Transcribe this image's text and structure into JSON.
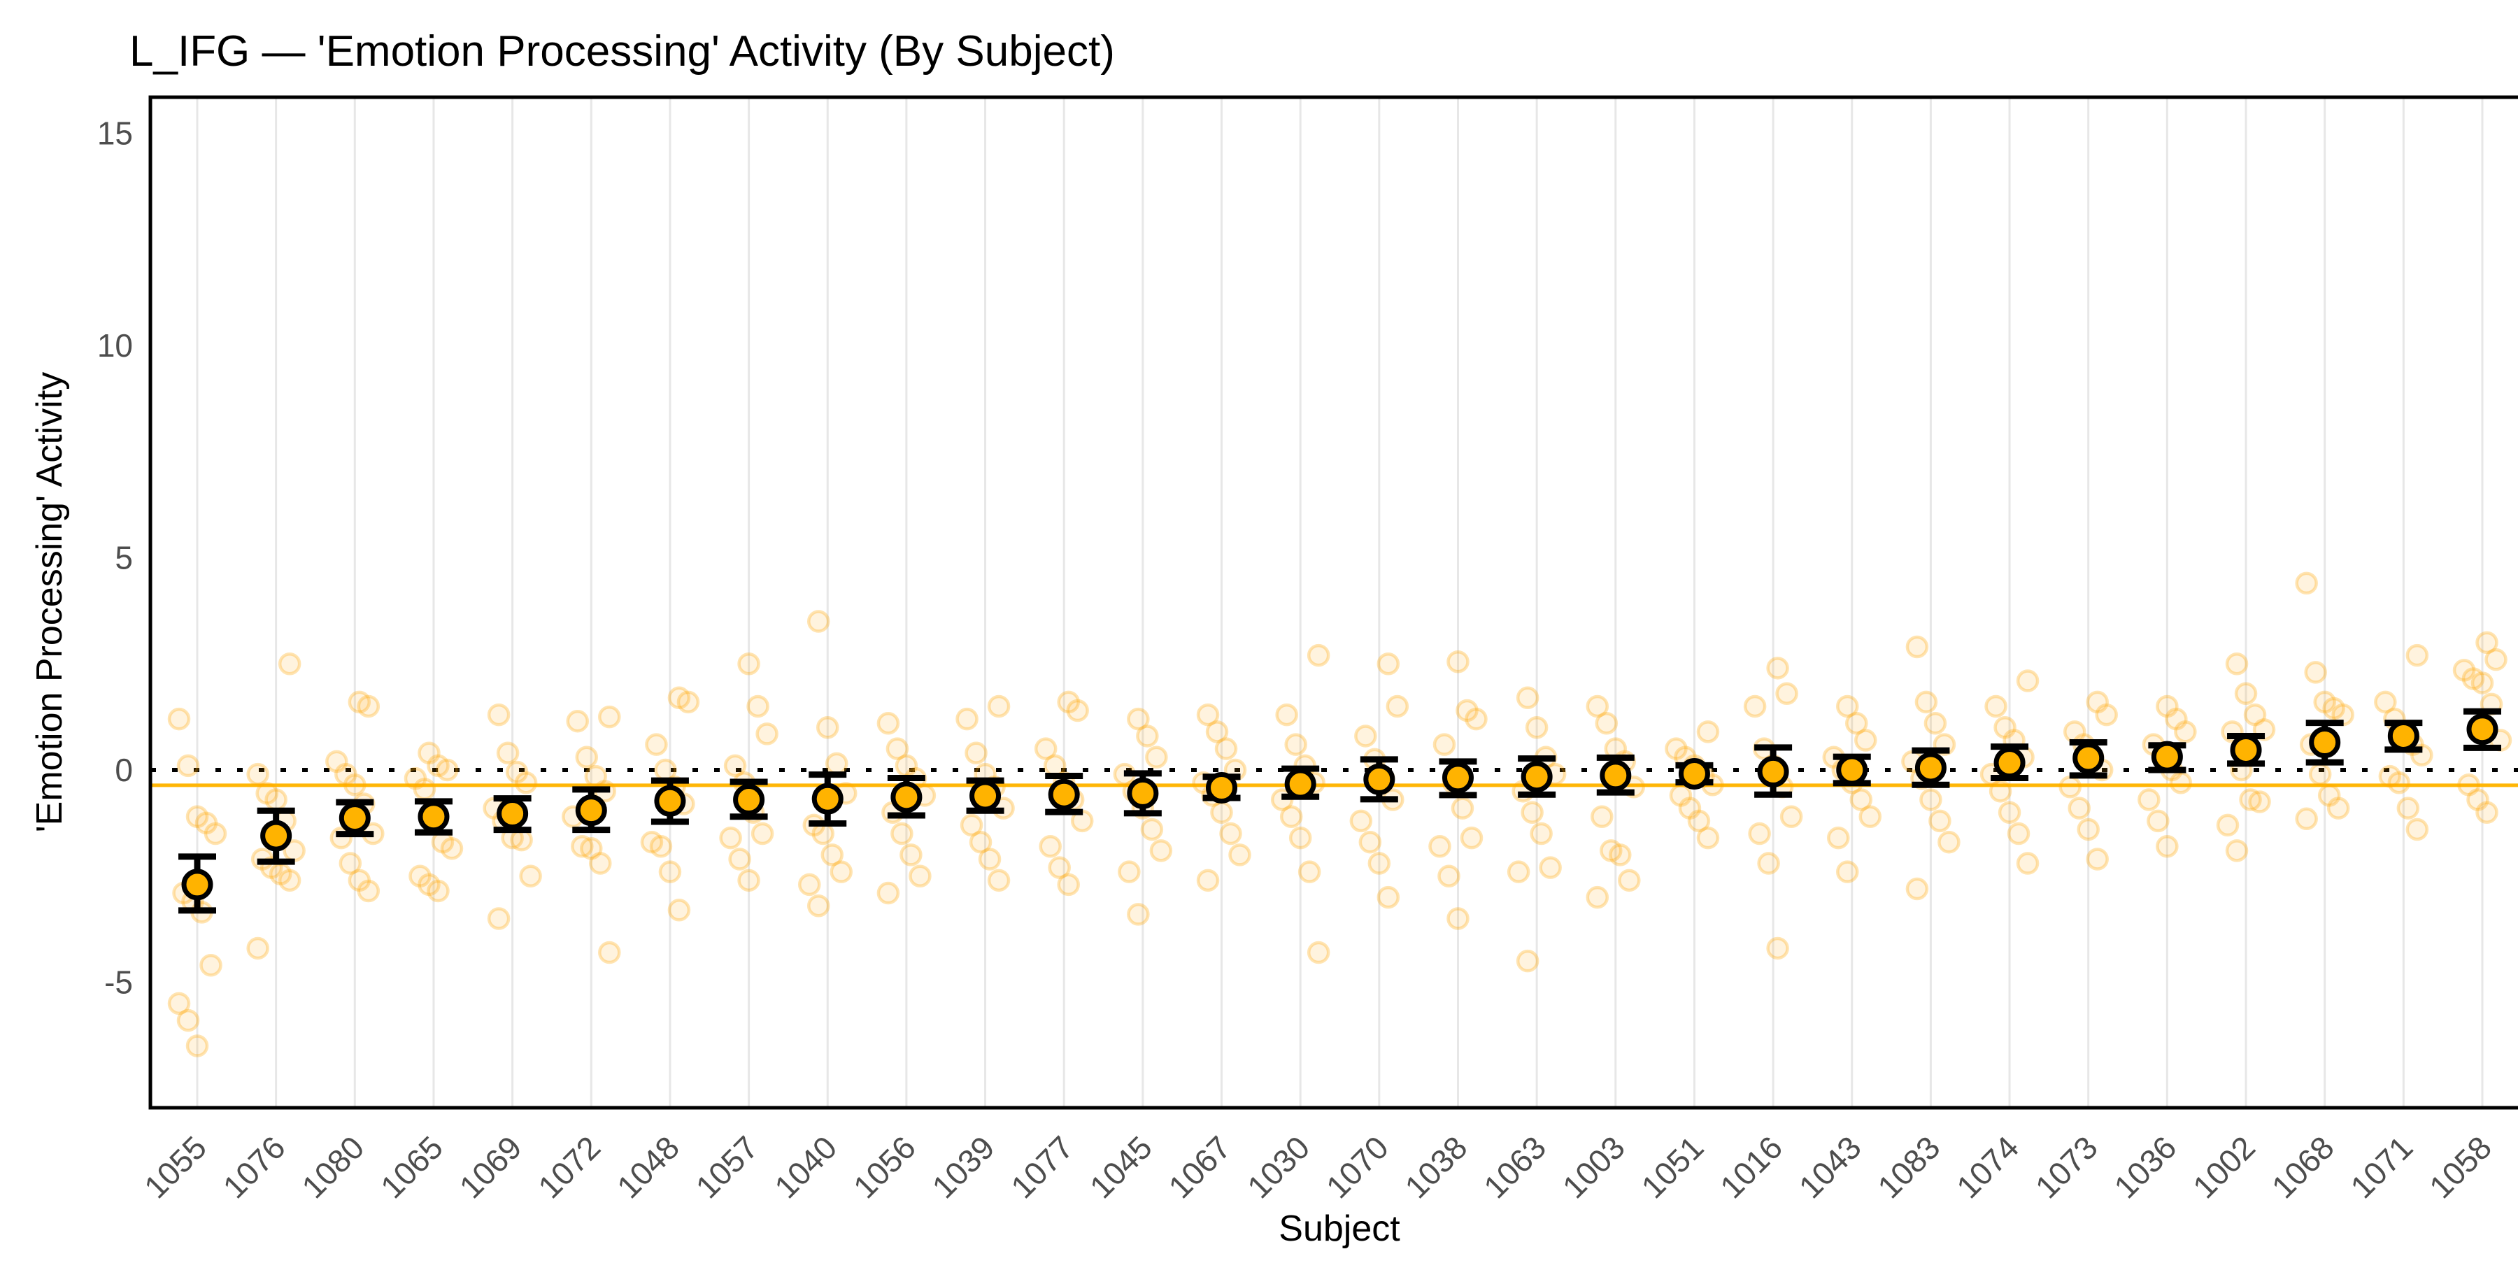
{
  "chart_data": {
    "type": "scatter",
    "title": "L_IFG — 'Emotion Processing' Activity (By Subject)",
    "xlabel": "Subject",
    "ylabel": "'Emotion Processing' Activity",
    "ylim": [
      -7.96,
      15.85
    ],
    "yticks": [
      15,
      10,
      5,
      0,
      -5
    ],
    "grid": "vertical-only",
    "legend": "none",
    "zero_line": {
      "value": 0,
      "style": "dotted",
      "color": "#000000"
    },
    "grand_mean_line": {
      "value": -0.36,
      "style": "solid",
      "color": "#FFB606"
    },
    "colors": {
      "mean_fill": "#FFB300",
      "mean_outline": "#000000",
      "error_bar": "#000000",
      "jitter_point": "#FFA500",
      "gridline": "#E7E7E7",
      "panel_border": "#000000",
      "tick_text": "#4d4d4d"
    },
    "series_note": "Each subject: mean activity (dot) with standard-error bar [lo,hi], plus individual run-level points",
    "subjects": [
      {
        "id": "1055",
        "mean": -2.7,
        "lo": -3.31,
        "hi": -2.04,
        "points": [
          1.2,
          0.1,
          -1.1,
          -1.25,
          -1.5,
          -2.9,
          -3.1,
          -3.35,
          -4.6,
          -5.5,
          -5.9,
          -6.5
        ]
      },
      {
        "id": "1076",
        "mean": -1.55,
        "lo": -2.16,
        "hi": -0.96,
        "points": [
          2.5,
          -0.1,
          -0.55,
          -0.7,
          -1.2,
          -1.9,
          -2.1,
          -2.3,
          -2.45,
          -2.6,
          -4.2
        ]
      },
      {
        "id": "1080",
        "mean": -1.13,
        "lo": -1.51,
        "hi": -0.76,
        "points": [
          1.6,
          1.5,
          0.2,
          -0.1,
          -0.35,
          -0.8,
          -1.5,
          -1.6,
          -2.2,
          -2.6,
          -2.85
        ]
      },
      {
        "id": "1065",
        "mean": -1.1,
        "lo": -1.47,
        "hi": -0.74,
        "points": [
          0.4,
          0.1,
          0.0,
          -0.2,
          -0.45,
          -1.0,
          -1.7,
          -1.85,
          -2.5,
          -2.7,
          -2.85
        ]
      },
      {
        "id": "1069",
        "mean": -1.03,
        "lo": -1.41,
        "hi": -0.67,
        "points": [
          1.3,
          0.4,
          -0.05,
          -0.3,
          -0.9,
          -1.2,
          -1.6,
          -1.65,
          -2.5,
          -3.5
        ]
      },
      {
        "id": "1072",
        "mean": -0.95,
        "lo": -1.41,
        "hi": -0.46,
        "points": [
          1.25,
          1.15,
          0.3,
          -0.15,
          -0.5,
          -1.1,
          -1.8,
          -1.85,
          -2.2,
          -4.3
        ]
      },
      {
        "id": "1048",
        "mean": -0.73,
        "lo": -1.22,
        "hi": -0.25,
        "points": [
          1.7,
          1.6,
          0.6,
          0.0,
          -0.4,
          -0.8,
          -1.7,
          -1.8,
          -2.4,
          -3.3
        ]
      },
      {
        "id": "1057",
        "mean": -0.7,
        "lo": -1.1,
        "hi": -0.28,
        "points": [
          2.5,
          1.5,
          0.85,
          0.1,
          -0.3,
          -1.0,
          -1.5,
          -1.6,
          -2.1,
          -2.6
        ]
      },
      {
        "id": "1040",
        "mean": -0.68,
        "lo": -1.26,
        "hi": -0.11,
        "points": [
          3.5,
          1.0,
          0.15,
          -0.55,
          -1.3,
          -1.5,
          -2.0,
          -2.4,
          -2.7,
          -3.2
        ]
      },
      {
        "id": "1056",
        "mean": -0.64,
        "lo": -1.07,
        "hi": -0.19,
        "points": [
          1.1,
          0.5,
          0.1,
          -0.2,
          -0.6,
          -1.0,
          -1.5,
          -2.0,
          -2.5,
          -2.9
        ]
      },
      {
        "id": "1039",
        "mean": -0.61,
        "lo": -0.96,
        "hi": -0.25,
        "points": [
          1.5,
          1.2,
          0.4,
          -0.1,
          -0.4,
          -0.9,
          -1.3,
          -1.7,
          -2.1,
          -2.6
        ]
      },
      {
        "id": "1077",
        "mean": -0.58,
        "lo": -0.99,
        "hi": -0.14,
        "points": [
          1.6,
          1.4,
          0.5,
          0.1,
          -0.3,
          -0.7,
          -1.2,
          -1.8,
          -2.3,
          -2.7
        ]
      },
      {
        "id": "1045",
        "mean": -0.55,
        "lo": -1.02,
        "hi": -0.08,
        "points": [
          1.2,
          0.8,
          0.3,
          -0.1,
          -0.5,
          -0.9,
          -1.4,
          -1.9,
          -2.4,
          -3.4
        ]
      },
      {
        "id": "1067",
        "mean": -0.42,
        "lo": -0.66,
        "hi": -0.16,
        "points": [
          1.3,
          0.9,
          0.5,
          0.0,
          -0.3,
          -0.6,
          -1.0,
          -1.5,
          -2.0,
          -2.6
        ]
      },
      {
        "id": "1030",
        "mean": -0.33,
        "lo": -0.63,
        "hi": 0.03,
        "points": [
          2.7,
          1.3,
          0.6,
          0.1,
          -0.3,
          -0.7,
          -1.1,
          -1.6,
          -2.4,
          -4.3
        ]
      },
      {
        "id": "1070",
        "mean": -0.22,
        "lo": -0.69,
        "hi": 0.25,
        "points": [
          2.5,
          1.5,
          0.8,
          0.25,
          -0.2,
          -0.7,
          -1.2,
          -1.7,
          -2.2,
          -3.0
        ]
      },
      {
        "id": "1038",
        "mean": -0.18,
        "lo": -0.59,
        "hi": 0.2,
        "points": [
          2.55,
          1.4,
          1.2,
          0.6,
          -0.3,
          -0.9,
          -1.6,
          -1.8,
          -2.5,
          -3.5
        ]
      },
      {
        "id": "1063",
        "mean": -0.16,
        "lo": -0.58,
        "hi": 0.27,
        "points": [
          1.7,
          1.0,
          0.3,
          -0.1,
          -0.5,
          -1.0,
          -1.5,
          -2.3,
          -2.4,
          -4.5
        ]
      },
      {
        "id": "1003",
        "mean": -0.13,
        "lo": -0.53,
        "hi": 0.29,
        "points": [
          1.5,
          1.1,
          0.5,
          0.2,
          -0.4,
          -1.1,
          -1.9,
          -2.0,
          -2.6,
          -3.0
        ]
      },
      {
        "id": "1051",
        "mean": -0.09,
        "lo": -0.29,
        "hi": 0.11,
        "points": [
          0.9,
          0.5,
          0.3,
          0.1,
          -0.15,
          -0.35,
          -0.6,
          -0.9,
          -1.2,
          -1.6
        ]
      },
      {
        "id": "1016",
        "mean": -0.04,
        "lo": -0.58,
        "hi": 0.53,
        "points": [
          2.4,
          1.8,
          1.5,
          0.5,
          0.1,
          -0.4,
          -1.1,
          -1.5,
          -2.2,
          -4.2
        ]
      },
      {
        "id": "1043",
        "mean": 0.0,
        "lo": -0.31,
        "hi": 0.31,
        "points": [
          1.5,
          1.1,
          0.7,
          0.3,
          0.0,
          -0.3,
          -0.7,
          -1.1,
          -1.6,
          -2.4
        ]
      },
      {
        "id": "1083",
        "mean": 0.05,
        "lo": -0.35,
        "hi": 0.46,
        "points": [
          2.9,
          1.6,
          1.1,
          0.6,
          0.2,
          -0.2,
          -0.7,
          -1.2,
          -1.7,
          -2.8
        ]
      },
      {
        "id": "1074",
        "mean": 0.17,
        "lo": -0.19,
        "hi": 0.55,
        "points": [
          2.1,
          1.5,
          1.0,
          0.7,
          0.3,
          -0.1,
          -0.5,
          -1.0,
          -1.5,
          -2.2
        ]
      },
      {
        "id": "1073",
        "mean": 0.28,
        "lo": -0.13,
        "hi": 0.65,
        "points": [
          1.6,
          1.3,
          0.9,
          0.6,
          0.3,
          0.0,
          -0.4,
          -0.9,
          -1.4,
          -2.1
        ]
      },
      {
        "id": "1036",
        "mean": 0.31,
        "lo": 0.0,
        "hi": 0.58,
        "points": [
          1.5,
          1.2,
          0.9,
          0.6,
          0.3,
          0.0,
          -0.3,
          -0.7,
          -1.2,
          -1.8
        ]
      },
      {
        "id": "1002",
        "mean": 0.47,
        "lo": 0.15,
        "hi": 0.8,
        "points": [
          2.5,
          1.8,
          1.3,
          0.95,
          0.9,
          0.0,
          -0.7,
          -0.75,
          -1.3,
          -1.9
        ]
      },
      {
        "id": "1068",
        "mean": 0.65,
        "lo": 0.18,
        "hi": 1.11,
        "points": [
          4.4,
          2.3,
          1.6,
          1.45,
          1.3,
          0.6,
          -0.1,
          -0.6,
          -0.9,
          -1.15
        ]
      },
      {
        "id": "1071",
        "mean": 0.8,
        "lo": 0.48,
        "hi": 1.11,
        "points": [
          2.7,
          1.6,
          1.2,
          0.9,
          0.6,
          0.35,
          -0.15,
          -0.3,
          -0.9,
          -1.4
        ]
      },
      {
        "id": "1058",
        "mean": 0.96,
        "lo": 0.52,
        "hi": 1.38,
        "points": [
          3.0,
          2.6,
          2.35,
          2.15,
          2.05,
          1.55,
          0.7,
          -0.35,
          -0.7,
          -1.0
        ]
      }
    ]
  }
}
